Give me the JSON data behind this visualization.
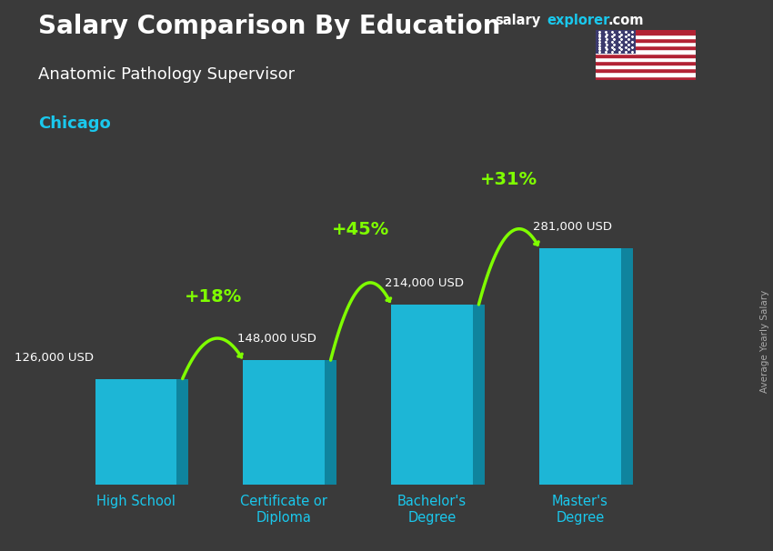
{
  "title_main": "Salary Comparison By Education",
  "subtitle": "Anatomic Pathology Supervisor",
  "city": "Chicago",
  "ylabel": "Average Yearly Salary",
  "watermark_salary": "salary",
  "watermark_explorer": "explorer",
  "watermark_com": ".com",
  "categories": [
    "High School",
    "Certificate or\nDiploma",
    "Bachelor's\nDegree",
    "Master's\nDegree"
  ],
  "values": [
    126000,
    148000,
    214000,
    281000
  ],
  "labels": [
    "126,000 USD",
    "148,000 USD",
    "214,000 USD",
    "281,000 USD"
  ],
  "pct_labels": [
    "+18%",
    "+45%",
    "+31%"
  ],
  "bar_color_main": "#1AC8ED",
  "bar_color_right": "#0A8FAD",
  "bar_color_top": "#5DDEFF",
  "pct_color": "#7FFF00",
  "background_color": "#3a3a3a",
  "title_color": "#ffffff",
  "subtitle_color": "#ffffff",
  "city_color": "#1AC8ED",
  "label_color": "#ffffff",
  "xlabel_color": "#1AC8ED",
  "arrow_color": "#7FFF00",
  "ylim": [
    0,
    340000
  ],
  "bar_width": 0.55,
  "bar_depth": 0.08
}
